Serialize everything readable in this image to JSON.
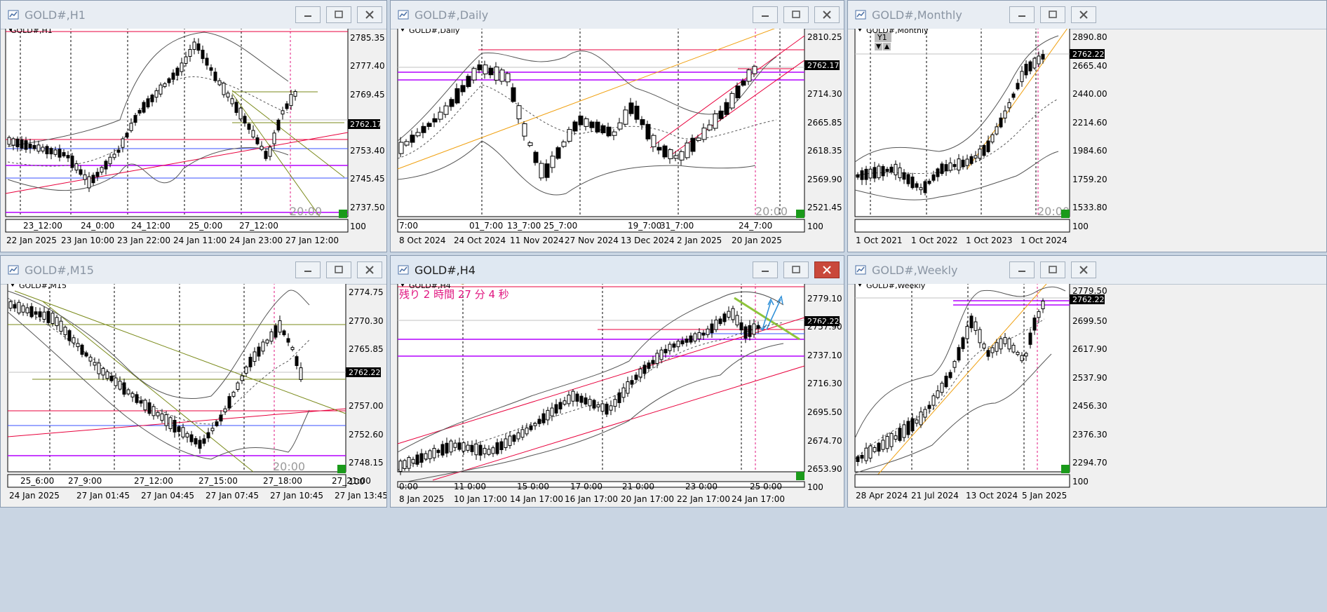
{
  "windows": {
    "h1": {
      "title": "GOLD#,H1",
      "symbol_label": "GOLD#,H1",
      "countdown": "20:00",
      "price_axis": [
        "2785.35",
        "2777.40",
        "2769.45",
        "2761.50",
        "2753.40",
        "2745.45",
        "2737.50"
      ],
      "current_price": "2762.17",
      "time_upper": [
        "23_12:00",
        "24_0:00",
        "24_12:00",
        "25_0:00",
        "27_12:00"
      ],
      "time_lower": [
        "22 Jan 2025",
        "23 Jan 10:00",
        "23 Jan 22:00",
        "24 Jan 11:00",
        "24 Jan 23:00",
        "27 Jan 12:00"
      ],
      "sub_label": "2",
      "sub_value": "100"
    },
    "daily": {
      "title": "GOLD#,Daily",
      "symbol_label": "GOLD#,Daily",
      "countdown": "20:00",
      "price_axis": [
        "2810.25",
        "2762.17",
        "2714.30",
        "2665.85",
        "2618.35",
        "2569.90",
        "2521.45"
      ],
      "current_price": "2762.17",
      "time_upper": [
        "7:00",
        "01_7:00",
        "13_7:00",
        "25_7:00",
        "19_7:00",
        "31_7:00",
        "24_7:00"
      ],
      "time_lower": [
        "8 Oct 2024",
        "24 Oct 2024",
        "11 Nov 2024",
        "27 Nov 2024",
        "13 Dec 2024",
        "2 Jan 2025",
        "20 Jan 2025"
      ],
      "sub_label": "2",
      "sub_value": "100"
    },
    "monthly": {
      "title": "GOLD#,Monthly",
      "symbol_label": "GOLD#,Monthly",
      "countdown": "20:00",
      "badge": "Y1",
      "price_axis": [
        "2890.80",
        "2665.40",
        "2440.00",
        "2214.60",
        "1984.60",
        "1759.20",
        "1533.80"
      ],
      "current_price": "2762.22",
      "time_lower": [
        "1 Oct 2021",
        "1 Oct 2022",
        "1 Oct 2023",
        "1 Oct 2024"
      ],
      "sub_label": "2",
      "sub_value": "100"
    },
    "m15": {
      "title": "GOLD#,M15",
      "symbol_label": "GOLD#,M15",
      "countdown": "20:00",
      "price_axis": [
        "2774.75",
        "2770.30",
        "2765.85",
        "2761.45",
        "2757.00",
        "2752.60",
        "2748.15"
      ],
      "current_price": "2762.22",
      "time_upper": [
        "25_6:00",
        "27_9:00",
        "27_12:00",
        "27_15:00",
        "27_18:00",
        "27_21:00"
      ],
      "time_lower": [
        "24 Jan 2025",
        "27 Jan 01:45",
        "27 Jan 04:45",
        "27 Jan 07:45",
        "27 Jan 10:45",
        "27 Jan 13:45"
      ],
      "sub_label": "2",
      "sub_value": "100"
    },
    "h4": {
      "title": "GOLD#,H4",
      "symbol_label": "GOLD#,H4",
      "timer_text": "残り 2 時間 27 分 4 秒",
      "price_axis": [
        "2779.10",
        "2757.90",
        "2737.10",
        "2716.30",
        "2695.50",
        "2674.70",
        "2653.90"
      ],
      "current_price": "2762.22",
      "time_upper": [
        "0:00",
        "11 0:00",
        "15 0:00",
        "17 0:00",
        "21 0:00",
        "23 0:00",
        "25 0:00"
      ],
      "time_lower": [
        "8 Jan 2025",
        "10 Jan 17:00",
        "14 Jan 17:00",
        "16 Jan 17:00",
        "20 Jan 17:00",
        "22 Jan 17:00",
        "24 Jan 17:00"
      ],
      "sub_label": "2",
      "sub_value": "100"
    },
    "weekly": {
      "title": "GOLD#,Weekly",
      "symbol_label": "GOLD#,Weekly",
      "price_axis": [
        "2779.50",
        "2699.50",
        "2617.90",
        "2537.90",
        "2456.30",
        "2376.30",
        "2294.70"
      ],
      "current_price": "2762.22",
      "time_lower": [
        "28 Apr 2024",
        "21 Jul 2024",
        "13 Oct 2024",
        "5 Jan 2025"
      ],
      "sub_label": "2",
      "sub_value": "100"
    }
  },
  "colors": {
    "red_line": "#e8003c",
    "magenta_line": "#b400ff",
    "blue_line": "#3a50ff",
    "olive_line": "#7a8a1a",
    "orange_line": "#f0a010",
    "price_box": "#000000"
  }
}
